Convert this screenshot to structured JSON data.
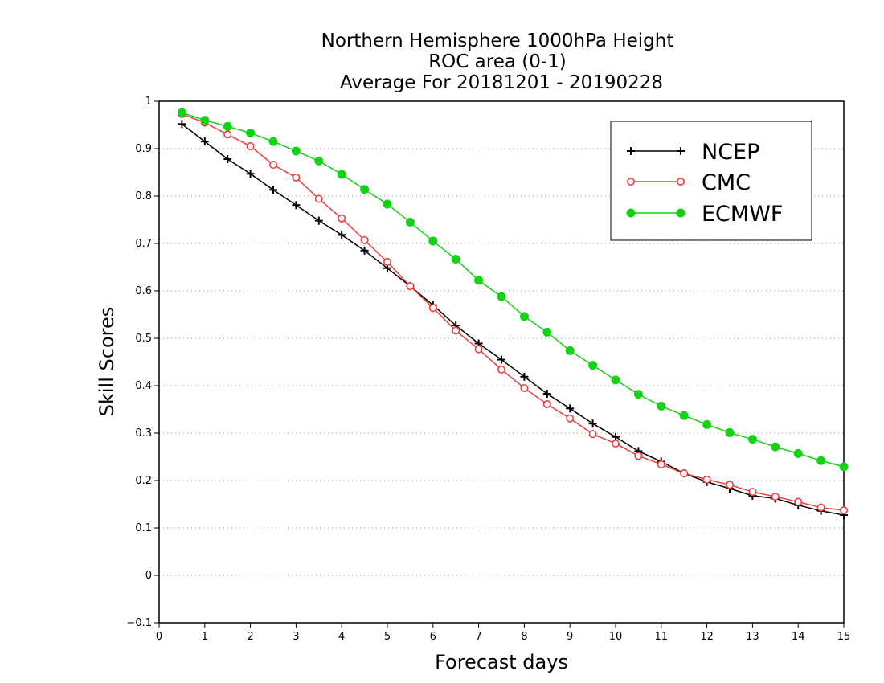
{
  "chart_data": {
    "type": "line",
    "title": [
      "Northern Hemisphere 1000hPa Height",
      "ROC area (0-1)",
      "Average For 20181201 - 20190228"
    ],
    "xlabel": "Forecast days",
    "ylabel": "Skill Scores",
    "xlim": [
      0,
      15
    ],
    "ylim": [
      -0.1,
      1
    ],
    "xticks": [
      "0",
      "1",
      "2",
      "3",
      "4",
      "5",
      "6",
      "7",
      "8",
      "9",
      "10",
      "11",
      "12",
      "13",
      "14",
      "15"
    ],
    "yticks": [
      "−0.1",
      "0",
      "0.1",
      "0.2",
      "0.3",
      "0.4",
      "0.5",
      "0.6",
      "0.7",
      "0.8",
      "0.9",
      "1"
    ],
    "grid": true,
    "legend_position": "top-right",
    "x": [
      0.5,
      1,
      1.5,
      2,
      2.5,
      3,
      3.5,
      4,
      4.5,
      5,
      5.5,
      6,
      6.5,
      7,
      7.5,
      8,
      8.5,
      9,
      9.5,
      10,
      10.5,
      11,
      11.5,
      12,
      12.5,
      13,
      13.5,
      14,
      14.5,
      15
    ],
    "series": [
      {
        "name": "NCEP",
        "color": "#000000",
        "marker": "plus",
        "values": [
          0.952,
          0.915,
          0.878,
          0.847,
          0.813,
          0.781,
          0.748,
          0.718,
          0.685,
          0.648,
          0.61,
          0.57,
          0.527,
          0.489,
          0.455,
          0.419,
          0.383,
          0.352,
          0.32,
          0.292,
          0.262,
          0.24,
          0.215,
          0.197,
          0.183,
          0.168,
          0.162,
          0.148,
          0.136,
          0.127
        ]
      },
      {
        "name": "CMC",
        "color": "#f03c3c",
        "marker": "open-circle",
        "values": [
          0.973,
          0.955,
          0.93,
          0.905,
          0.866,
          0.839,
          0.794,
          0.753,
          0.707,
          0.661,
          0.61,
          0.564,
          0.516,
          0.477,
          0.434,
          0.395,
          0.361,
          0.331,
          0.298,
          0.278,
          0.252,
          0.234,
          0.215,
          0.202,
          0.191,
          0.176,
          0.166,
          0.155,
          0.143,
          0.137
        ]
      },
      {
        "name": "ECMWF",
        "color": "#14d214",
        "marker": "filled-circle",
        "values": [
          0.976,
          0.96,
          0.947,
          0.933,
          0.915,
          0.895,
          0.874,
          0.846,
          0.814,
          0.783,
          0.745,
          0.705,
          0.667,
          0.622,
          0.588,
          0.546,
          0.513,
          0.474,
          0.443,
          0.412,
          0.382,
          0.357,
          0.337,
          0.318,
          0.301,
          0.287,
          0.271,
          0.257,
          0.242,
          0.229
        ]
      }
    ]
  }
}
